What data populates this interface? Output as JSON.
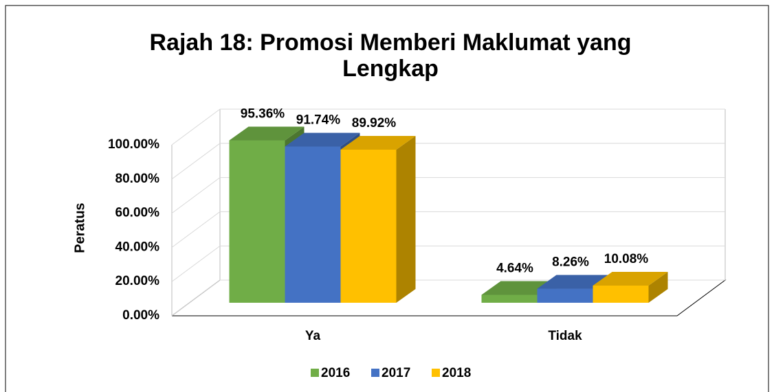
{
  "chart_data": {
    "type": "bar3d",
    "title": [
      "Rajah 18: Promosi Memberi Maklumat yang",
      "Lengkap"
    ],
    "y_label": "Peratus",
    "categories": [
      "Ya",
      "Tidak"
    ],
    "series": [
      {
        "name": "2016",
        "color": "#70ad47",
        "values": [
          95.36,
          4.64
        ],
        "value_labels": [
          "95.36%",
          "4.64%"
        ]
      },
      {
        "name": "2017",
        "color": "#4472c4",
        "values": [
          91.74,
          8.26
        ],
        "value_labels": [
          "91.74%",
          "8.26%"
        ]
      },
      {
        "name": "2018",
        "color": "#ffc000",
        "values": [
          89.92,
          10.08
        ],
        "value_labels": [
          "89.92%",
          "10.08%"
        ]
      }
    ],
    "ylim": [
      0,
      100
    ],
    "yticks": [
      {
        "value": 0,
        "label": "0.00%"
      },
      {
        "value": 20,
        "label": "20.00%"
      },
      {
        "value": 40,
        "label": "40.00%"
      },
      {
        "value": 60,
        "label": "60.00%"
      },
      {
        "value": 80,
        "label": "80.00%"
      },
      {
        "value": 100,
        "label": "100.00%"
      }
    ],
    "grid": true,
    "legend": "bottom"
  }
}
